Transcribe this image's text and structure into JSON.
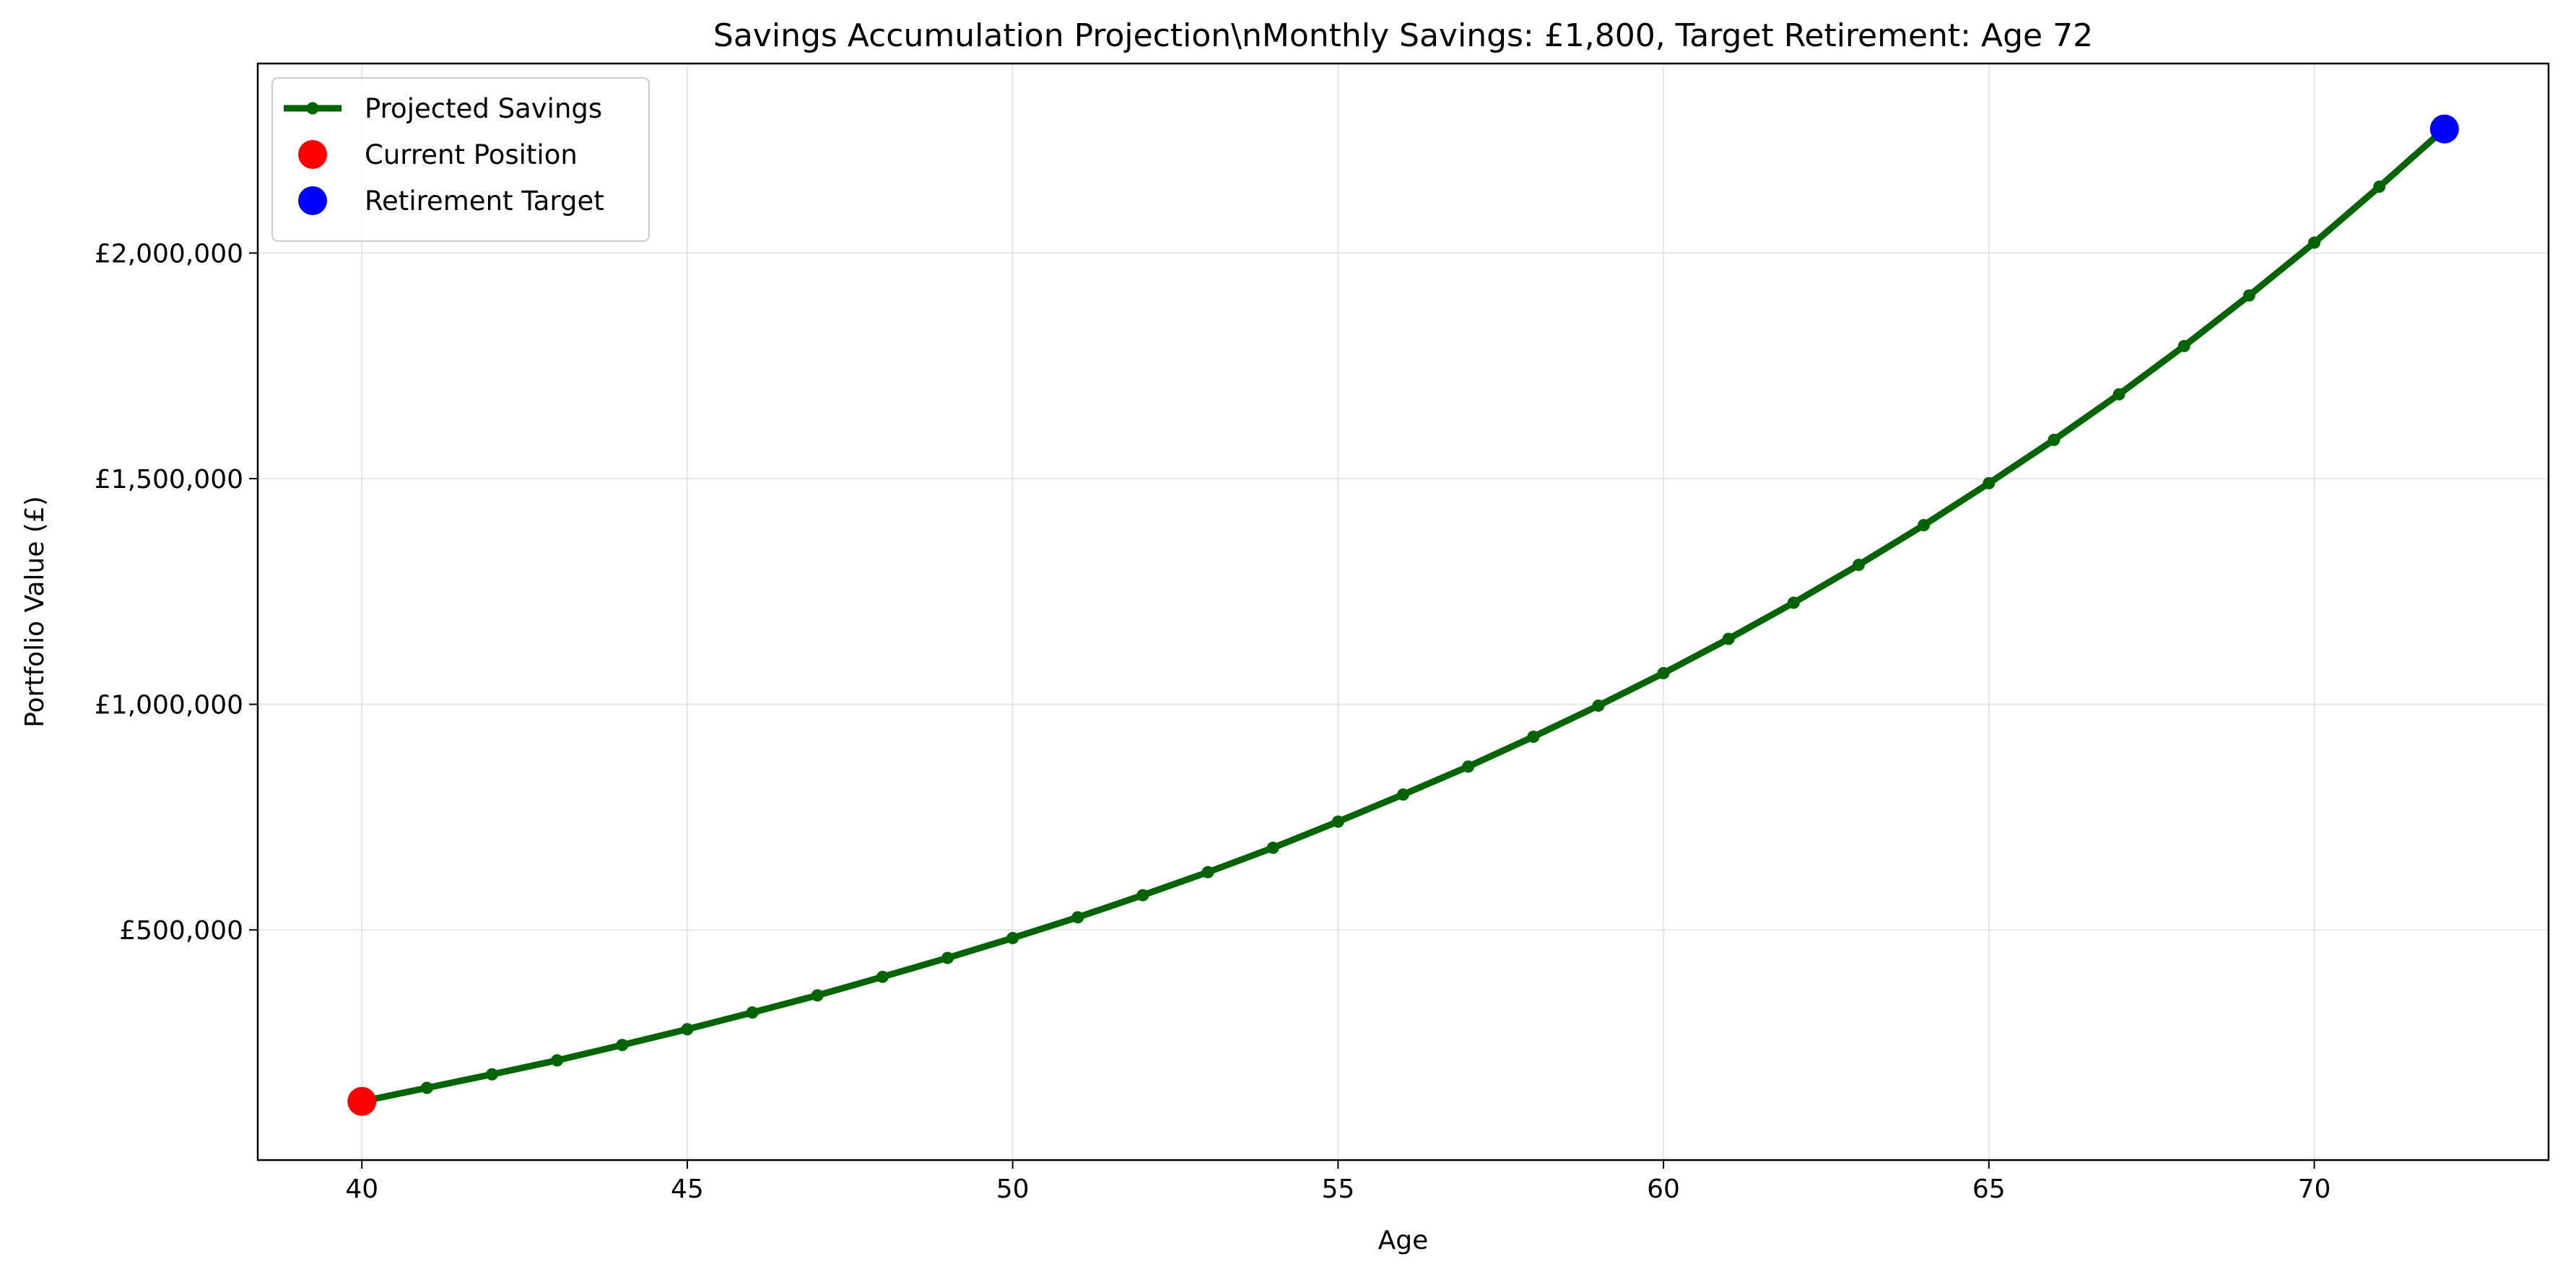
{
  "chart_data": {
    "type": "line",
    "title": "Savings Accumulation Projection\\nMonthly Savings: £1,800, Target Retirement: Age 72",
    "xlabel": "Age",
    "ylabel": "Portfolio Value (£)",
    "xlim": [
      38.4,
      73.6
    ],
    "ylim": [
      -10000,
      2420000
    ],
    "x_ticks": [
      40,
      45,
      50,
      55,
      60,
      65,
      70
    ],
    "y_ticks": [
      500000,
      1000000,
      1500000,
      2000000
    ],
    "y_tick_labels": [
      "£500,000",
      "£1,000,000",
      "£1,500,000",
      "£2,000,000"
    ],
    "grid": true,
    "legend_position": "top-left",
    "series": [
      {
        "name": "Projected Savings",
        "color": "#006400",
        "x": [
          40,
          41,
          42,
          43,
          44,
          45,
          46,
          47,
          48,
          49,
          50,
          51,
          52,
          53,
          54,
          55,
          56,
          57,
          58,
          59,
          60,
          61,
          62,
          63,
          64,
          65,
          66,
          67,
          68,
          69,
          70,
          71,
          72
        ],
        "values": [
          120000,
          150000,
          180000,
          211000,
          245000,
          280000,
          317000,
          355000,
          396000,
          438000,
          482000,
          528000,
          577000,
          628000,
          682000,
          740000,
          800000,
          862000,
          928000,
          997000,
          1069000,
          1145000,
          1225000,
          1309000,
          1397000,
          1490000,
          1586000,
          1687000,
          1794000,
          1906000,
          2023000,
          2147000,
          2275000
        ]
      }
    ],
    "markers": [
      {
        "name": "Current Position",
        "color": "#ff0000",
        "x": 40,
        "y": 120000
      },
      {
        "name": "Retirement Target",
        "color": "#0000ff",
        "x": 72,
        "y": 2275000
      }
    ]
  }
}
